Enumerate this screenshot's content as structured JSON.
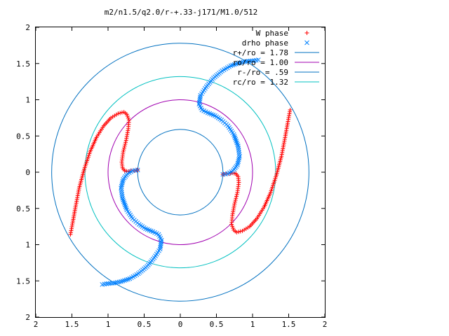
{
  "chart_data": {
    "type": "scatter",
    "title": "m2/n1.5/q2.0/r-+.33-j171/M1.0/512",
    "xlabel": "",
    "ylabel": "",
    "xlim": [
      -2,
      2
    ],
    "ylim": [
      -2,
      2
    ],
    "x_tick_values": [
      -2,
      -1.5,
      -1,
      -0.5,
      0,
      0.5,
      1,
      1.5,
      2
    ],
    "x_tick_labels": [
      "2",
      "1.5",
      "1",
      "0.5",
      "0",
      "0.5",
      "1",
      "1.5",
      "2"
    ],
    "y_tick_values": [
      2,
      1.5,
      1,
      0.5,
      0,
      -0.5,
      -1,
      -1.5,
      -2
    ],
    "y_tick_labels": [
      "2",
      "1.5",
      "1",
      "0.5",
      "0",
      "0.5",
      "1",
      "1.5",
      "2"
    ],
    "grid": false,
    "legend_position": "top-right",
    "series": [
      {
        "name": "W phase",
        "marker": "plus",
        "color": "#ff0000",
        "x": [
          1.52,
          1.49,
          1.45,
          1.4,
          1.33,
          1.25,
          1.16,
          1.06,
          0.96,
          0.86,
          0.78,
          0.74,
          0.71,
          0.72,
          0.75,
          0.79,
          0.81,
          0.8,
          0.77,
          0.72,
          0.67,
          0.63,
          0.6,
          0.59,
          -1.52,
          -1.49,
          -1.45,
          -1.4,
          -1.33,
          -1.25,
          -1.16,
          -1.06,
          -0.96,
          -0.86,
          -0.78,
          -0.74,
          -0.71,
          -0.72,
          -0.75,
          -0.79,
          -0.81,
          -0.8,
          -0.77,
          -0.72,
          -0.67,
          -0.63,
          -0.6,
          -0.59
        ],
        "y": [
          0.86,
          0.7,
          0.48,
          0.22,
          -0.04,
          -0.28,
          -0.48,
          -0.64,
          -0.75,
          -0.81,
          -0.83,
          -0.8,
          -0.72,
          -0.6,
          -0.44,
          -0.28,
          -0.14,
          -0.06,
          -0.02,
          -0.01,
          -0.02,
          -0.02,
          -0.03,
          -0.03,
          -0.86,
          -0.7,
          -0.48,
          -0.22,
          0.04,
          0.28,
          0.48,
          0.64,
          0.75,
          0.81,
          0.83,
          0.8,
          0.72,
          0.6,
          0.44,
          0.28,
          0.14,
          0.06,
          0.02,
          0.01,
          0.02,
          0.02,
          0.03,
          0.03
        ]
      },
      {
        "name": "drho phase",
        "marker": "cross",
        "color": "#0080ff",
        "x": [
          0.59,
          0.66,
          0.73,
          0.79,
          0.82,
          0.8,
          0.74,
          0.66,
          0.57,
          0.48,
          0.38,
          0.3,
          0.26,
          0.28,
          0.36,
          0.46,
          0.58,
          0.7,
          0.82,
          0.92,
          1.02,
          1.08,
          -0.59,
          -0.66,
          -0.73,
          -0.79,
          -0.82,
          -0.8,
          -0.74,
          -0.66,
          -0.57,
          -0.48,
          -0.38,
          -0.3,
          -0.26,
          -0.28,
          -0.36,
          -0.46,
          -0.58,
          -0.7,
          -0.82,
          -0.92,
          -1.02,
          -1.08
        ],
        "y": [
          -0.03,
          -0.02,
          0.02,
          0.1,
          0.22,
          0.36,
          0.52,
          0.64,
          0.72,
          0.78,
          0.82,
          0.86,
          0.94,
          1.06,
          1.18,
          1.3,
          1.4,
          1.47,
          1.51,
          1.53,
          1.54,
          1.55,
          0.03,
          0.02,
          -0.02,
          -0.1,
          -0.22,
          -0.36,
          -0.52,
          -0.64,
          -0.72,
          -0.78,
          -0.82,
          -0.86,
          -0.94,
          -1.06,
          -1.18,
          -1.3,
          -1.4,
          -1.47,
          -1.51,
          -1.53,
          -1.54,
          -1.55
        ]
      },
      {
        "name": "r+/ro = 1.78",
        "type": "circle",
        "radius": 1.78,
        "color": "#0070c0"
      },
      {
        "name": "ro/ro = 1.00",
        "type": "circle",
        "radius": 1.0,
        "color": "#a000b0"
      },
      {
        "name": "r-/ro = .59",
        "type": "circle",
        "radius": 0.59,
        "color": "#0070c0"
      },
      {
        "name": "rc/ro = 1.32",
        "type": "circle",
        "radius": 1.32,
        "color": "#00c0c0"
      }
    ]
  }
}
